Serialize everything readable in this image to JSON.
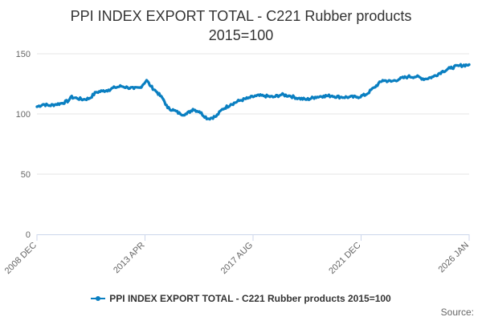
{
  "chart_data": {
    "type": "line",
    "title": "PPI INDEX EXPORT TOTAL - C221 Rubber products",
    "subtitle": "2015=100",
    "xlabel": "",
    "ylabel": "",
    "x_range": [
      "2008-12",
      "2026-01"
    ],
    "x_tick_labels": [
      "2008 DEC",
      "2013 APR",
      "2017 AUG",
      "2021 DEC",
      "2026 JAN"
    ],
    "ylim": [
      0,
      150
    ],
    "y_ticks": [
      0,
      50,
      100,
      150
    ],
    "grid": true,
    "legend_position": "bottom",
    "series": [
      {
        "name": "PPI INDEX EXPORT TOTAL - C221 Rubber products 2015=100",
        "color": "#0a7fc1",
        "points": [
          [
            "2008-12",
            106
          ],
          [
            "2009-03",
            108
          ],
          [
            "2009-06",
            107
          ],
          [
            "2009-09",
            108
          ],
          [
            "2009-12",
            109
          ],
          [
            "2010-03",
            111
          ],
          [
            "2010-04",
            114
          ],
          [
            "2010-07",
            113
          ],
          [
            "2010-10",
            112
          ],
          [
            "2011-01",
            113
          ],
          [
            "2011-04",
            118
          ],
          [
            "2011-07",
            119
          ],
          [
            "2011-10",
            120
          ],
          [
            "2012-01",
            122
          ],
          [
            "2012-04",
            123
          ],
          [
            "2012-07",
            122
          ],
          [
            "2012-10",
            121
          ],
          [
            "2013-01",
            122
          ],
          [
            "2013-04",
            128
          ],
          [
            "2013-06",
            123
          ],
          [
            "2013-09",
            118
          ],
          [
            "2013-12",
            112
          ],
          [
            "2014-02",
            105
          ],
          [
            "2014-05",
            103
          ],
          [
            "2014-08",
            100
          ],
          [
            "2014-11",
            100
          ],
          [
            "2015-02",
            104
          ],
          [
            "2015-05",
            102
          ],
          [
            "2015-09",
            96
          ],
          [
            "2016-01",
            98
          ],
          [
            "2016-04",
            104
          ],
          [
            "2016-08",
            108
          ],
          [
            "2016-12",
            111
          ],
          [
            "2017-04",
            113
          ],
          [
            "2017-08",
            115
          ],
          [
            "2017-12",
            115
          ],
          [
            "2018-04",
            114
          ],
          [
            "2018-08",
            116
          ],
          [
            "2018-12",
            115
          ],
          [
            "2019-04",
            113
          ],
          [
            "2019-08",
            112
          ],
          [
            "2019-12",
            114
          ],
          [
            "2020-04",
            115
          ],
          [
            "2020-08",
            115
          ],
          [
            "2020-12",
            114
          ],
          [
            "2021-04",
            114
          ],
          [
            "2021-08",
            114
          ],
          [
            "2021-12",
            116
          ],
          [
            "2022-04",
            122
          ],
          [
            "2022-08",
            128
          ],
          [
            "2022-12",
            127
          ],
          [
            "2023-04",
            129
          ],
          [
            "2023-08",
            131
          ],
          [
            "2023-12",
            131
          ],
          [
            "2024-04",
            129
          ],
          [
            "2024-08",
            131
          ],
          [
            "2024-12",
            135
          ],
          [
            "2025-04",
            138
          ],
          [
            "2025-08",
            140
          ],
          [
            "2026-01",
            141
          ]
        ]
      }
    ]
  },
  "legend": {
    "label": "PPI INDEX EXPORT TOTAL - C221 Rubber products 2015=100"
  },
  "credits": "Source:"
}
